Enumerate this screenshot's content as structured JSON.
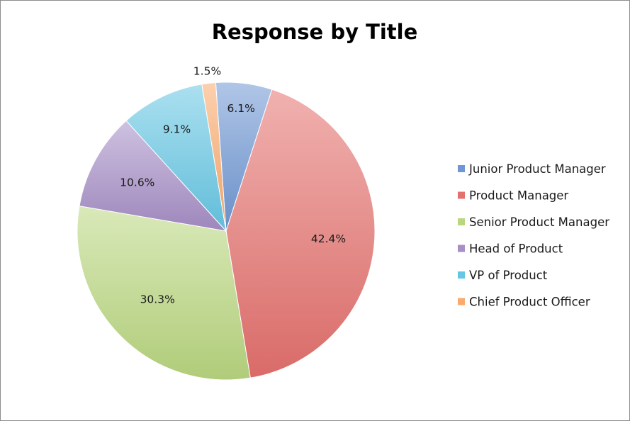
{
  "chart_data": {
    "type": "pie",
    "title": "Response by Title",
    "legend_position": "right",
    "start_angle_deg": -4,
    "direction": "clockwise",
    "slices": [
      {
        "name": "Junior Product Manager",
        "value": 6.1,
        "label": "6.1%",
        "color": "#6f97d3"
      },
      {
        "name": "Product Manager",
        "value": 42.4,
        "label": "42.4%",
        "color": "#e4716d"
      },
      {
        "name": "Senior Product Manager",
        "value": 30.3,
        "label": "30.3%",
        "color": "#b9d77f"
      },
      {
        "name": "Head of Product",
        "value": 10.6,
        "label": "10.6%",
        "color": "#a68ec6"
      },
      {
        "name": "VP of Product",
        "value": 9.1,
        "label": "9.1%",
        "color": "#66c7e4"
      },
      {
        "name": "Chief Product Officer",
        "value": 1.5,
        "label": "1.5%",
        "color": "#f9aa6c"
      }
    ]
  }
}
